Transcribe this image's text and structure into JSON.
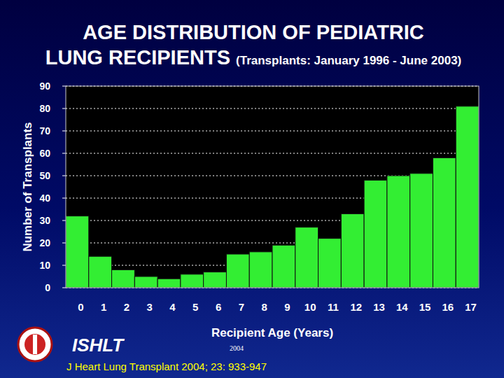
{
  "chart_data": {
    "type": "bar",
    "title": "AGE DISTRIBUTION OF PEDIATRIC LUNG RECIPIENTS",
    "subtitle": "(Transplants: January 1996 - June 2003)",
    "x_label": "Recipient Age (Years)",
    "y_label": "Number of Transplants",
    "categories": [
      "0",
      "1",
      "2",
      "3",
      "4",
      "5",
      "6",
      "7",
      "8",
      "9",
      "10",
      "11",
      "12",
      "13",
      "14",
      "15",
      "16",
      "17"
    ],
    "values": [
      32,
      14,
      8,
      5,
      4,
      6,
      7,
      15,
      16,
      19,
      27,
      22,
      33,
      48,
      50,
      51,
      58,
      81
    ],
    "color": "#33ee33",
    "ylim": [
      0,
      90
    ],
    "yticks": [
      0,
      10,
      20,
      30,
      40,
      50,
      60,
      70,
      80,
      90
    ],
    "grid": true,
    "annotations": [
      "ISHLT",
      "2004",
      "J Heart Lung Transplant 2004; 23: 933-947"
    ]
  }
}
